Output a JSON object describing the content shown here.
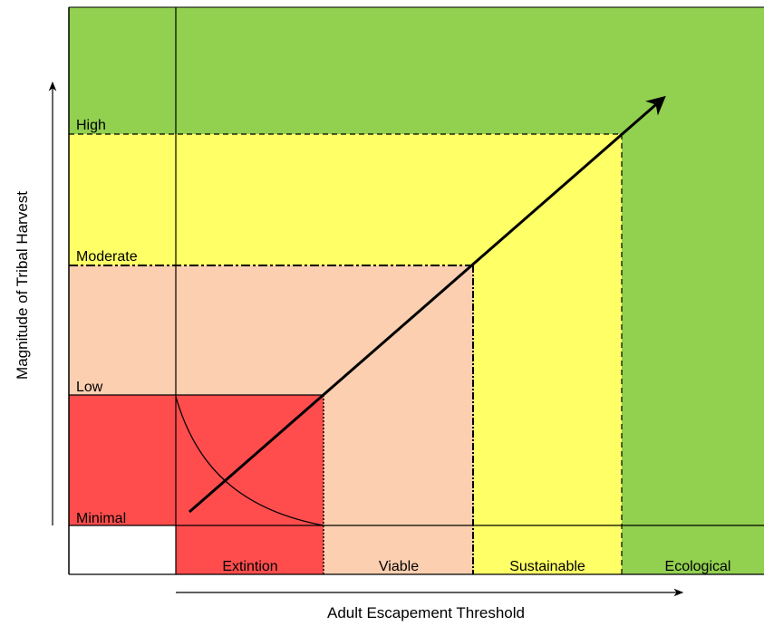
{
  "colors": {
    "green": "#92d050",
    "yellow": "#ffff66",
    "peach": "#fbcfb0",
    "red": "#ff4d4d",
    "white": "#ffffff",
    "line": "#000000"
  },
  "harvest_levels": {
    "high": "High",
    "moderate": "Moderate",
    "low": "Low",
    "minimal": "Minimal"
  },
  "escapement_thresholds": {
    "extinction": "Extintion",
    "viable": "Viable",
    "sustainable": "Sustainable",
    "ecological": "Ecological"
  },
  "axes": {
    "y_label": "Magnitude of Tribal Harvest",
    "x_label": "Adult Escapement Threshold"
  }
}
